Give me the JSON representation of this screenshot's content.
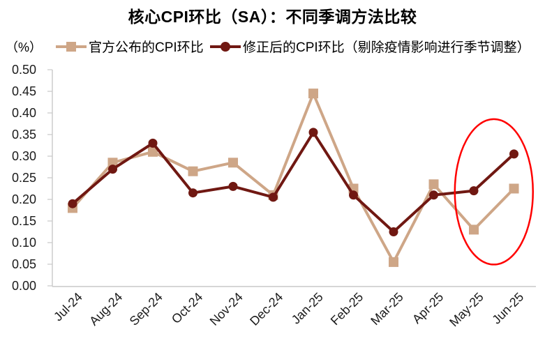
{
  "title": "核心CPI环比（SA）：不同季调方法比较",
  "y_axis_unit_label": "（%）",
  "legend": [
    {
      "label": "官方公布的CPI环比",
      "color": "#CEA687",
      "marker": "square"
    },
    {
      "label": "修正后的CPI环比（剔除疫情影响进行季节调整）",
      "color": "#701812",
      "marker": "circle"
    }
  ],
  "colors": {
    "official_series": "#CEA687",
    "revised_series": "#701812",
    "highlight": "#FF0000",
    "axis": "#C9C9C9",
    "text": "#1A1A1A"
  },
  "chart_data": {
    "type": "line",
    "title": "核心CPI环比（SA）：不同季调方法比较",
    "ylabel": "（%）",
    "xlabel": "",
    "categories": [
      "Jul-24",
      "Aug-24",
      "Sep-24",
      "Oct-24",
      "Nov-24",
      "Dec-24",
      "Jan-25",
      "Feb-25",
      "Mar-25",
      "Apr-25",
      "May-25",
      "Jun-25"
    ],
    "series": [
      {
        "name": "官方公布的CPI环比",
        "marker": "square",
        "color": "#CEA687",
        "values": [
          0.18,
          0.285,
          0.31,
          0.265,
          0.285,
          0.21,
          0.445,
          0.225,
          0.055,
          0.235,
          0.13,
          0.225
        ]
      },
      {
        "name": "修正后的CPI环比（剔除疫情影响进行季节调整）",
        "marker": "circle",
        "color": "#701812",
        "values": [
          0.19,
          0.27,
          0.33,
          0.215,
          0.23,
          0.205,
          0.355,
          0.21,
          0.125,
          0.21,
          0.22,
          0.305
        ]
      }
    ],
    "ylim": [
      0,
      0.5
    ],
    "ytick_step": 0.05,
    "ytick_format_decimals": 2,
    "xlabel_rotation_deg": -45,
    "grid": false,
    "legend_position": "top",
    "annotation": {
      "shape": "ellipse",
      "color": "#FF0000",
      "covers": [
        "May-25",
        "Jun-25"
      ]
    }
  }
}
